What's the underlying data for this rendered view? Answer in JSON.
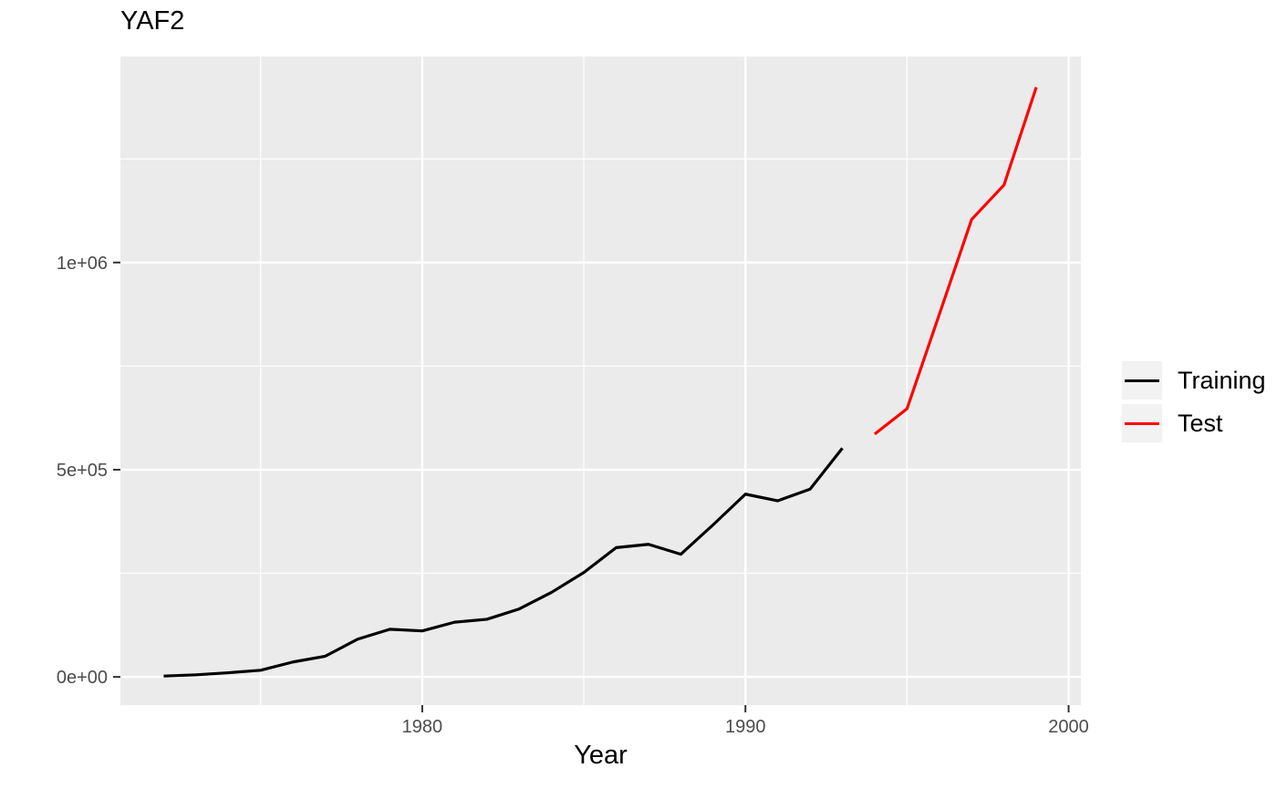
{
  "title": "YAF2",
  "chart_data": {
    "type": "line",
    "title": "YAF2",
    "xlabel": "Year",
    "ylabel": "",
    "panel_bg": "#EBEBEB",
    "grid_color": "#FFFFFF",
    "tick_color": "#333333",
    "axis_text_color": "#4d4d4d",
    "xlim": [
      1970.66,
      2000.38
    ],
    "ylim": [
      -68000,
      1497000
    ],
    "x_major_ticks": [
      {
        "value": 1980,
        "label": "1980"
      },
      {
        "value": 1990,
        "label": "1990"
      },
      {
        "value": 2000,
        "label": "2000"
      }
    ],
    "x_minor_ticks": [
      1975,
      1985,
      1995
    ],
    "y_major_ticks": [
      {
        "value": 0,
        "label": "0e+00"
      },
      {
        "value": 500000,
        "label": "5e+05"
      },
      {
        "value": 1000000,
        "label": "1e+06"
      }
    ],
    "y_minor_ticks": [
      250000,
      750000,
      1250000
    ],
    "legend_position": "right",
    "series": [
      {
        "name": "Training",
        "color": "#000000",
        "x": [
          1972,
          1973,
          1974,
          1975,
          1976,
          1977,
          1978,
          1979,
          1980,
          1981,
          1982,
          1983,
          1984,
          1985,
          1986,
          1987,
          1988,
          1989,
          1990,
          1991,
          1992,
          1993
        ],
        "y": [
          2000,
          5000,
          10000,
          16000,
          36000,
          50000,
          91000,
          115000,
          111000,
          132000,
          139000,
          164000,
          204000,
          252000,
          312000,
          320000,
          296000,
          367000,
          441000,
          425000,
          453000,
          552000
        ]
      },
      {
        "name": "Test",
        "color": "#FF0000",
        "x": [
          1994,
          1995,
          1996,
          1997,
          1998,
          1999
        ],
        "y": [
          586000,
          647000,
          875000,
          1104000,
          1187000,
          1423000
        ]
      }
    ]
  },
  "legend": {
    "items": [
      {
        "label": "Training",
        "color": "#000000"
      },
      {
        "label": "Test",
        "color": "#FF0000"
      }
    ]
  }
}
